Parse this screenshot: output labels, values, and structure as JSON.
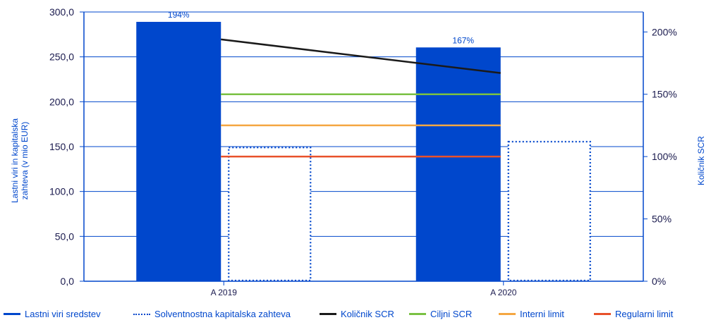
{
  "chart_data": {
    "type": "bar",
    "categories": [
      "A 2019",
      "A 2020"
    ],
    "series": [
      {
        "name": "Lastni viri sredstev",
        "kind": "bar",
        "axis": "left",
        "style": "solid",
        "color": "#0047cc",
        "values": [
          289.0,
          260.5
        ]
      },
      {
        "name": "Solventnostna kapitalska zahteva",
        "kind": "bar",
        "axis": "left",
        "style": "dotted",
        "color": "#0047cc",
        "values": [
          149.0,
          155.5
        ]
      },
      {
        "name": "Količnik SCR",
        "kind": "line",
        "axis": "right",
        "style": "solid",
        "color": "#1a1a1a",
        "values": [
          194,
          167
        ]
      },
      {
        "name": "Ciljni SCR",
        "kind": "line",
        "axis": "right",
        "style": "solid",
        "color": "#7ac143",
        "values": [
          150,
          150
        ]
      },
      {
        "name": "Interni limit",
        "kind": "line",
        "axis": "right",
        "style": "solid",
        "color": "#f5a742",
        "values": [
          125,
          125
        ]
      },
      {
        "name": "Regularni limit",
        "kind": "line",
        "axis": "right",
        "style": "solid",
        "color": "#e8512a",
        "values": [
          100,
          100
        ]
      }
    ],
    "data_labels": [
      "194%",
      "167%"
    ],
    "ylabel": "Lastni viri in kapitalska zahteva (v mio EUR)",
    "ylabel_lines": [
      "Lastni viri in kapitalska",
      "zahteva (v mio EUR)"
    ],
    "ylim": [
      0,
      300
    ],
    "yticks": [
      "0,0",
      "50,0",
      "100,0",
      "150,0",
      "200,0",
      "250,0",
      "300,0"
    ],
    "y2label": "Količnik SCR",
    "y2lim": [
      0,
      216
    ],
    "y2ticks": [
      "0%",
      "50%",
      "100%",
      "150%",
      "200%"
    ],
    "grid": true,
    "legend_position": "bottom",
    "colors": {
      "axis": "#0047cc",
      "grid": "#0047cc",
      "text": "#1a1a4e"
    }
  }
}
